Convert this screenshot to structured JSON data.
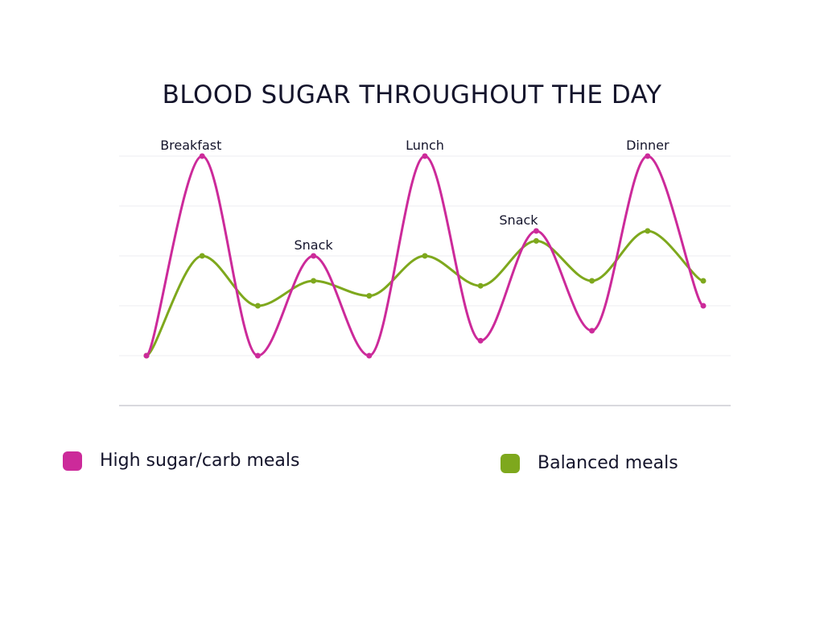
{
  "chart_data": {
    "type": "line",
    "title": "BLOOD SUGAR THROUGHOUT THE DAY",
    "xlabel": "",
    "ylabel": "",
    "x": [
      0,
      1,
      2,
      3,
      4,
      5,
      6,
      7,
      8,
      9,
      10
    ],
    "ylim": [
      0,
      5
    ],
    "grid": true,
    "smooth": true,
    "series": [
      {
        "name": "High sugar/carb meals",
        "color": "#cc2a9a",
        "values": [
          1.0,
          5.0,
          1.0,
          3.0,
          1.0,
          5.0,
          1.3,
          3.5,
          1.5,
          5.0,
          2.0
        ]
      },
      {
        "name": "Balanced meals",
        "color": "#7ea81d",
        "values": [
          1.0,
          3.0,
          2.0,
          2.5,
          2.2,
          3.0,
          2.4,
          3.3,
          2.5,
          3.5,
          2.5
        ]
      }
    ],
    "annotations": [
      {
        "text": "Breakfast",
        "x": 1,
        "y": 5.0
      },
      {
        "text": "Snack",
        "x": 3,
        "y": 3.0
      },
      {
        "text": "Lunch",
        "x": 5,
        "y": 5.0
      },
      {
        "text": "Snack",
        "x": 7,
        "y": 3.5
      },
      {
        "text": "Dinner",
        "x": 9,
        "y": 5.0
      }
    ],
    "legend_position": "bottom"
  }
}
